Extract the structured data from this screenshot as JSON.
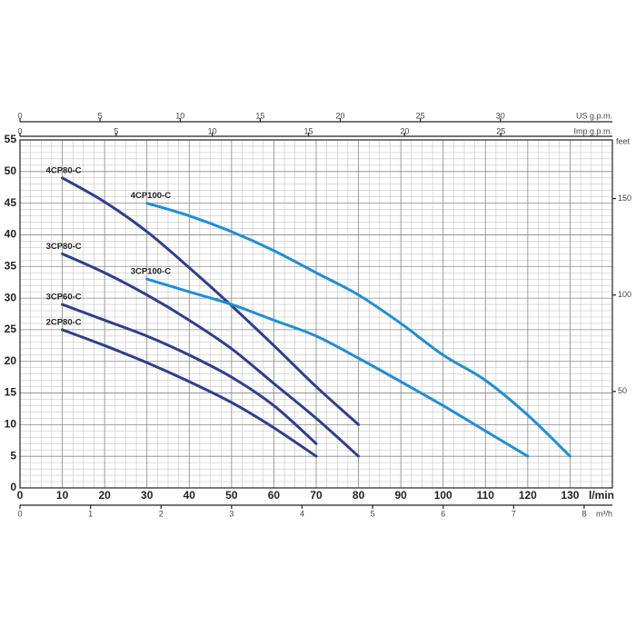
{
  "chart_data": {
    "type": "line",
    "xlabel": "l/min",
    "xlim": [
      0,
      140
    ],
    "xticks": [
      0,
      10,
      20,
      30,
      40,
      50,
      60,
      70,
      80,
      90,
      100,
      110,
      120,
      130
    ],
    "ylim": [
      0,
      55
    ],
    "yticks": [
      0,
      5,
      10,
      15,
      20,
      25,
      30,
      35,
      40,
      45,
      50,
      55
    ],
    "x2label": "US g.p.m.",
    "x2lim": [
      0,
      36.99
    ],
    "x2ticks": [
      0,
      5,
      10,
      15,
      20,
      25,
      30
    ],
    "x3label": "Imp g.p.m.",
    "x3lim": [
      0,
      30.8
    ],
    "x3ticks": [
      0,
      5,
      10,
      15,
      20,
      25
    ],
    "x4label": "m³/h",
    "x4lim": [
      0,
      8.4
    ],
    "x4ticks": [
      0,
      1,
      2,
      3,
      4,
      5,
      6,
      7,
      8
    ],
    "y2label": "feet",
    "y2lim": [
      0,
      180.4
    ],
    "y2ticks": [
      50,
      100,
      150
    ],
    "grid": true,
    "series": [
      {
        "name": "4CP80-C",
        "color": "#2d3f8e",
        "x": [
          10,
          20,
          30,
          40,
          50,
          60,
          70,
          80
        ],
        "values": [
          49,
          45.2,
          40.5,
          34.8,
          28.8,
          22.5,
          16,
          10
        ]
      },
      {
        "name": "3CP80-C",
        "color": "#2d3f8e",
        "x": [
          10,
          20,
          30,
          40,
          50,
          60,
          70,
          80
        ],
        "values": [
          37,
          34,
          30.5,
          26.5,
          22,
          16.5,
          11,
          5
        ]
      },
      {
        "name": "3CP60-C",
        "color": "#2d3f8e",
        "x": [
          10,
          20,
          30,
          40,
          50,
          60,
          70
        ],
        "values": [
          29,
          26.5,
          24,
          21,
          17.5,
          13,
          7
        ]
      },
      {
        "name": "2CP80-C",
        "color": "#2d3f8e",
        "x": [
          10,
          20,
          30,
          40,
          50,
          60,
          70
        ],
        "values": [
          25,
          22.5,
          19.8,
          16.8,
          13.5,
          9.5,
          5
        ]
      },
      {
        "name": "4CP100-C",
        "color": "#1f8fd6",
        "x": [
          30,
          40,
          50,
          60,
          70,
          80,
          90,
          100,
          110,
          120,
          130
        ],
        "values": [
          45,
          43,
          40.5,
          37.5,
          34,
          30.5,
          26,
          21,
          17,
          11.5,
          5
        ]
      },
      {
        "name": "3CP100-C",
        "color": "#1f8fd6",
        "x": [
          30,
          40,
          50,
          60,
          70,
          80,
          90,
          100,
          110,
          120
        ],
        "values": [
          33,
          31,
          29,
          26.5,
          24,
          20.5,
          16.8,
          13,
          9,
          5
        ]
      }
    ]
  }
}
